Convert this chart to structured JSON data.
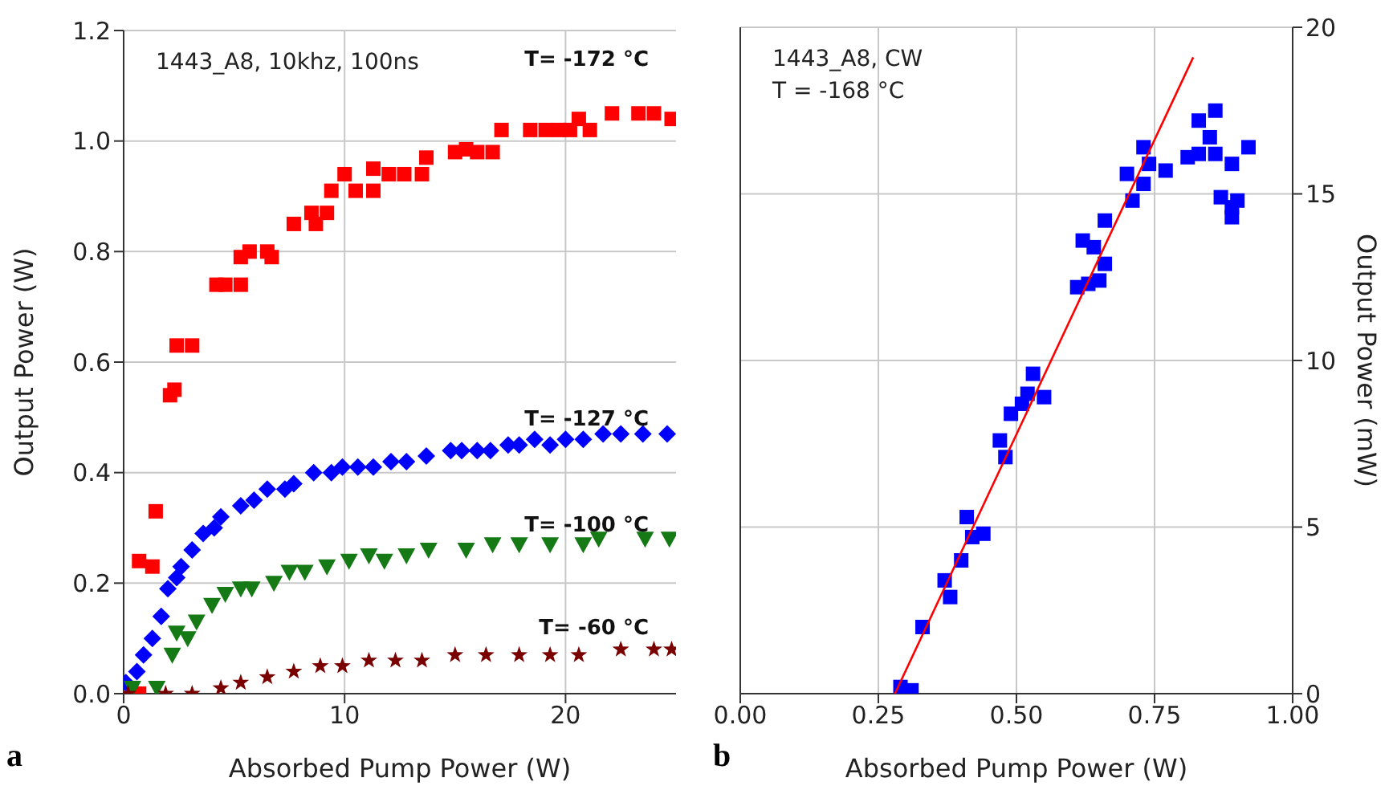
{
  "chart_data": [
    {
      "type": "scatter",
      "xlabel": "Absorbed Pump Power (W)",
      "ylabel": "Output Power (W)",
      "xlim": [
        0,
        25
      ],
      "xticks": [
        0,
        10,
        20
      ],
      "ylim": [
        0,
        1.2
      ],
      "yticks": [
        {
          "value": 0,
          "label": "0.0"
        },
        0.2,
        0.4,
        0.6,
        0.8,
        {
          "value": 1,
          "label": "1.0"
        },
        {
          "value": 1.2,
          "label": "1.2"
        }
      ],
      "grid": true,
      "series": [
        {
          "color": "#ff0000",
          "marker": "square",
          "x": [
            0.7,
            0.7,
            1.3,
            1.45,
            2.1,
            2.3,
            2.4,
            3.1,
            4.2,
            4.6,
            5.3,
            5.3,
            5.7,
            6.5,
            6.7,
            7.7,
            8.5,
            8.7,
            9.2,
            9.4,
            10.0,
            10.5,
            11.3,
            11.3,
            12.0,
            12.7,
            13.5,
            13.7,
            15.0,
            15.5,
            16.0,
            16.7,
            17.1,
            18.4,
            19.1,
            19.7,
            20.2,
            20.6,
            21.1,
            22.1,
            23.3,
            24.0,
            24.8
          ],
          "values": [
            0.0,
            0.24,
            0.23,
            0.33,
            0.54,
            0.55,
            0.63,
            0.63,
            0.74,
            0.74,
            0.74,
            0.79,
            0.8,
            0.8,
            0.79,
            0.85,
            0.87,
            0.85,
            0.87,
            0.91,
            0.94,
            0.91,
            0.91,
            0.95,
            0.94,
            0.94,
            0.94,
            0.97,
            0.98,
            0.985,
            0.98,
            0.98,
            1.02,
            1.02,
            1.02,
            1.02,
            1.02,
            1.04,
            1.02,
            1.05,
            1.05,
            1.05,
            1.04
          ]
        },
        {
          "color": "#0000ff",
          "marker": "diamond",
          "x": [
            0.1,
            0.6,
            0.9,
            1.3,
            1.7,
            2.0,
            2.4,
            2.6,
            3.1,
            3.6,
            4.1,
            4.4,
            5.3,
            5.9,
            6.5,
            7.3,
            7.7,
            8.6,
            9.4,
            9.9,
            10.6,
            11.3,
            12.1,
            12.8,
            13.7,
            14.8,
            15.3,
            16.0,
            16.6,
            17.4,
            17.9,
            18.6,
            19.3,
            20.0,
            20.8,
            21.7,
            22.5,
            23.5,
            24.6
          ],
          "values": [
            0.02,
            0.04,
            0.07,
            0.1,
            0.14,
            0.19,
            0.21,
            0.23,
            0.26,
            0.29,
            0.3,
            0.32,
            0.34,
            0.35,
            0.37,
            0.37,
            0.38,
            0.4,
            0.4,
            0.41,
            0.41,
            0.41,
            0.42,
            0.42,
            0.43,
            0.44,
            0.44,
            0.44,
            0.44,
            0.45,
            0.45,
            0.46,
            0.45,
            0.46,
            0.46,
            0.47,
            0.47,
            0.47,
            0.47
          ]
        },
        {
          "color": "#157a15",
          "marker": "triangle",
          "x": [
            0.4,
            1.5,
            2.2,
            2.4,
            2.9,
            3.3,
            4.0,
            4.6,
            5.3,
            5.8,
            6.8,
            7.5,
            8.2,
            9.2,
            10.2,
            11.1,
            11.8,
            12.8,
            13.8,
            15.5,
            16.7,
            17.9,
            19.3,
            20.8,
            21.5,
            23.6,
            24.7
          ],
          "values": [
            0.01,
            0.01,
            0.07,
            0.11,
            0.1,
            0.13,
            0.16,
            0.18,
            0.19,
            0.19,
            0.2,
            0.22,
            0.22,
            0.23,
            0.24,
            0.25,
            0.24,
            0.25,
            0.26,
            0.26,
            0.27,
            0.27,
            0.27,
            0.27,
            0.28,
            0.28,
            0.28
          ]
        },
        {
          "color": "#7a0000",
          "marker": "star",
          "x": [
            0.2,
            1.9,
            3.1,
            4.4,
            5.3,
            6.5,
            7.7,
            8.9,
            9.9,
            11.1,
            12.3,
            13.5,
            15.0,
            16.4,
            17.9,
            19.3,
            20.6,
            22.5,
            24.0,
            24.8
          ],
          "values": [
            0.0,
            0.0,
            0.0,
            0.01,
            0.02,
            0.03,
            0.04,
            0.05,
            0.05,
            0.06,
            0.06,
            0.06,
            0.07,
            0.07,
            0.07,
            0.07,
            0.07,
            0.08,
            0.08,
            0.08
          ]
        }
      ],
      "annotations": [
        "1443_A8, 10khz, 100ns",
        "T= -172 °C",
        "T= -127 °C",
        "T= -100 °C",
        "T= -60 °C",
        "a"
      ]
    },
    {
      "type": "scatter",
      "xlabel": "Absorbed Pump Power (W)",
      "y2label": "Output Power (mW)",
      "tick_labels": [
        "x",
        "y2"
      ],
      "xlim": [
        0,
        1
      ],
      "xticks": [
        {
          "value": 0,
          "label": "0.00"
        },
        0.25,
        {
          "value": 0.5,
          "label": "0.50"
        },
        0.75,
        {
          "value": 1,
          "label": "1.00"
        }
      ],
      "y2lim": [
        0,
        20
      ],
      "y2ticks": [
        0,
        5,
        10,
        15,
        20
      ],
      "grid": true,
      "series": [
        {
          "color": "#0000ff",
          "marker": "square",
          "axis": "y2",
          "x": [
            0.29,
            0.31,
            0.33,
            0.37,
            0.38,
            0.4,
            0.41,
            0.42,
            0.44,
            0.47,
            0.48,
            0.49,
            0.51,
            0.52,
            0.55,
            0.53,
            0.61,
            0.63,
            0.65,
            0.62,
            0.64,
            0.66,
            0.66,
            0.7,
            0.71,
            0.73,
            0.73,
            0.74,
            0.77,
            0.81,
            0.83,
            0.83,
            0.85,
            0.86,
            0.86,
            0.89,
            0.87,
            0.9,
            0.89,
            0.89,
            0.92
          ],
          "values": [
            0.2,
            0.1,
            2.0,
            3.4,
            2.9,
            4.0,
            5.3,
            4.7,
            4.8,
            7.6,
            7.1,
            8.4,
            8.7,
            9.0,
            8.9,
            9.6,
            12.2,
            12.3,
            12.4,
            13.6,
            13.4,
            12.9,
            14.2,
            15.6,
            14.8,
            15.3,
            16.4,
            15.9,
            15.7,
            16.1,
            17.2,
            16.2,
            16.7,
            17.5,
            16.2,
            15.9,
            14.9,
            14.8,
            14.6,
            14.3,
            16.4
          ]
        },
        {
          "type": "line",
          "color": "#ff0000",
          "marker": "none",
          "axis": "y2",
          "x": [
            0.28,
            0.82
          ],
          "values": [
            0,
            19.1
          ]
        }
      ],
      "annotations": [
        "1443_A8, CW",
        "T = -168 °C",
        "b"
      ]
    }
  ]
}
